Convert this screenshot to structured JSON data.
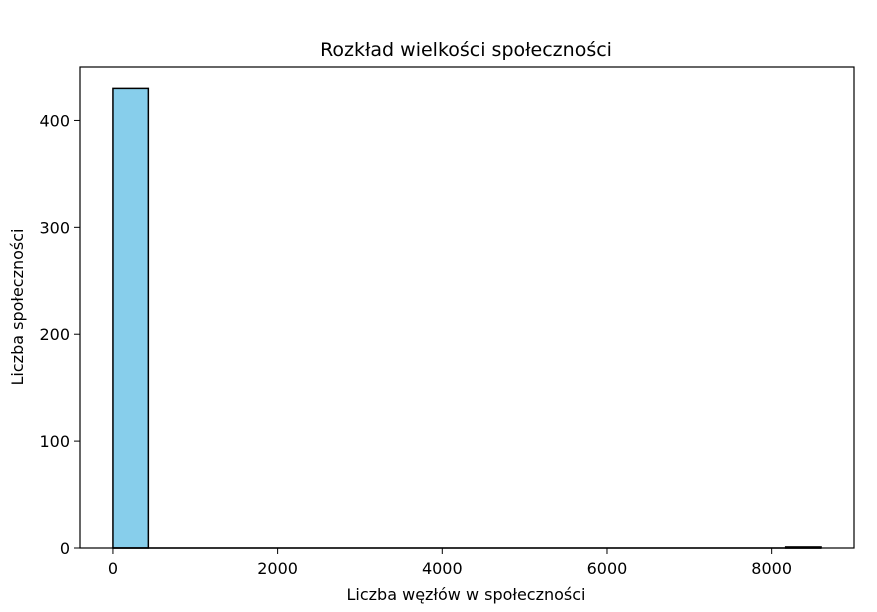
{
  "chart_data": {
    "type": "bar",
    "title": "Rozkład wielkości społeczności",
    "xlabel": "Liczba węzłów w społeczności",
    "ylabel": "Liczba społeczności",
    "xlim": [
      -400,
      9000
    ],
    "ylim": [
      0,
      450
    ],
    "xticks": [
      0,
      2000,
      4000,
      6000,
      8000
    ],
    "xtick_labels": [
      "0",
      "2000",
      "4000",
      "6000",
      "8000"
    ],
    "yticks": [
      0,
      100,
      200,
      300,
      400
    ],
    "ytick_labels": [
      "0",
      "100",
      "200",
      "300",
      "400"
    ],
    "bin_edges": [
      0,
      430,
      860,
      1290,
      1720,
      2150,
      2580,
      3010,
      3440,
      3870,
      4300,
      4730,
      5160,
      5590,
      6020,
      6450,
      6880,
      7310,
      7740,
      8170,
      8600
    ],
    "counts": [
      430,
      0,
      0,
      0,
      0,
      0,
      0,
      0,
      0,
      0,
      0,
      0,
      0,
      0,
      0,
      0,
      0,
      0,
      0,
      1
    ],
    "bar_color": "#87CEEB",
    "edge_color": "#000000",
    "grid": false
  }
}
